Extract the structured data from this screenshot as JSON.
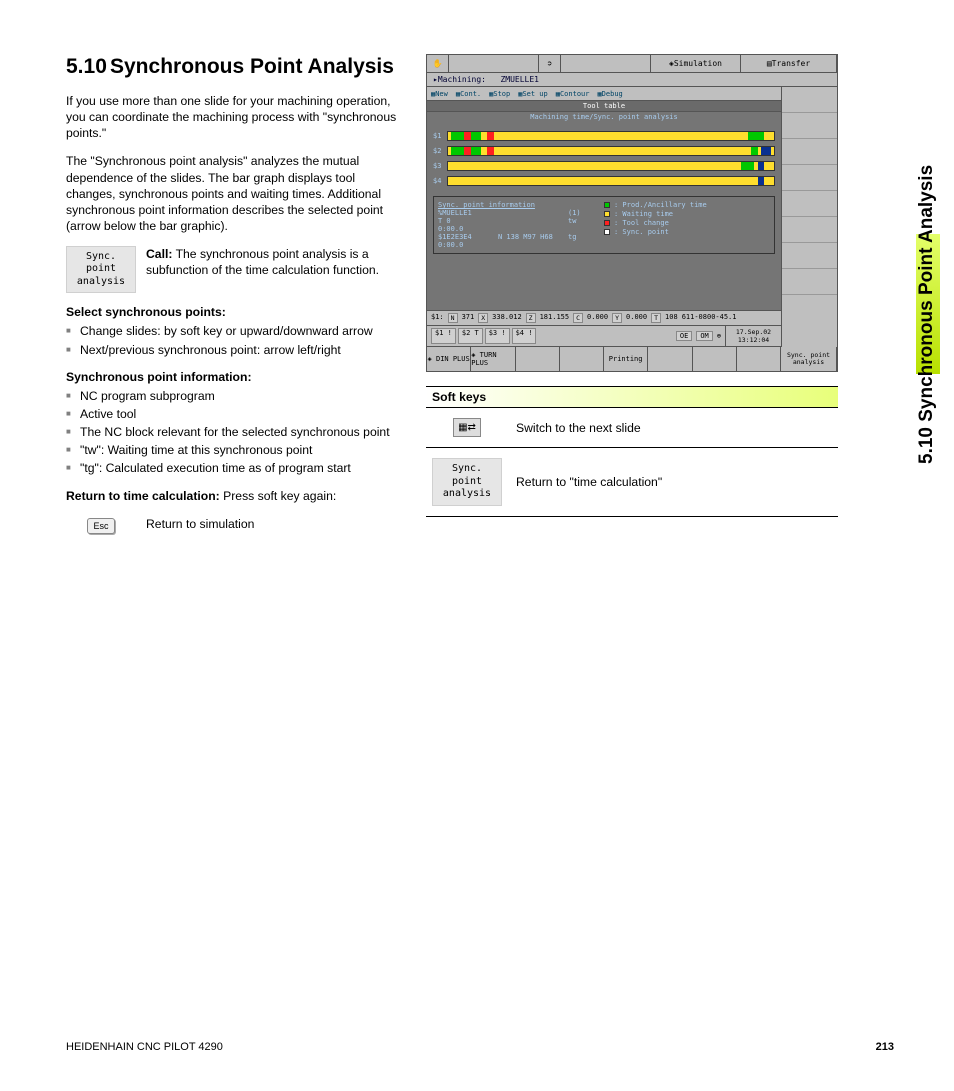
{
  "heading_number": "5.10",
  "heading_title": "Synchronous Point Analysis",
  "para1": "If you use more than one slide for your machining operation, you can coordinate the machining process with \"synchronous points.\"",
  "para2": "The \"Synchronous point analysis\" analyzes the mutual dependence of the slides. The bar graph displays tool changes, synchronous points and waiting times. Additional synchronous point information describes the selected point (arrow below the bar graphic).",
  "softkey_sync_line1": "Sync. point",
  "softkey_sync_line2": "analysis",
  "call_label": "Call:",
  "call_text": " The synchronous point analysis is a subfunction of the time calculation function.",
  "select_heading": "Select synchronous points:",
  "select_items": [
    "Change slides: by soft key or upward/downward arrow",
    "Next/previous synchronous point: arrow left/right"
  ],
  "info_heading": "Synchronous point information:",
  "info_items": [
    "NC program subprogram",
    "Active tool",
    "The NC block relevant for the selected synchronous point",
    "\"tw\": Waiting time at this synchronous point",
    "\"tg\": Calculated execution time as of program start"
  ],
  "return_heading": "Return to time calculation:",
  "return_text": " Press soft key again:",
  "esc_label": "Esc",
  "esc_text": "Return to simulation",
  "screenshot": {
    "top_bar": {
      "simulation": "Simulation",
      "transfer": "Transfer"
    },
    "machining_label": "Machining:",
    "machining_value": "ZMUELLE1",
    "tabs": [
      "New",
      "Cont.",
      "Stop",
      "Set up",
      "Contour",
      "Debug"
    ],
    "tool_table": "Tool table",
    "mach_time": "Machining time/Sync. point analysis",
    "bars": [
      {
        "label": "$1",
        "segments": [
          {
            "l": 1,
            "w": 4,
            "c": "#00c800"
          },
          {
            "l": 5,
            "w": 2,
            "c": "#ff2020"
          },
          {
            "l": 7,
            "w": 3,
            "c": "#00c800"
          },
          {
            "l": 12,
            "w": 2,
            "c": "#ff2020"
          },
          {
            "l": 92,
            "w": 5,
            "c": "#00c800"
          }
        ]
      },
      {
        "label": "$2",
        "segments": [
          {
            "l": 1,
            "w": 4,
            "c": "#00c800"
          },
          {
            "l": 5,
            "w": 2,
            "c": "#ff2020"
          },
          {
            "l": 7,
            "w": 3,
            "c": "#00c800"
          },
          {
            "l": 12,
            "w": 2,
            "c": "#ff2020"
          },
          {
            "l": 93,
            "w": 2,
            "c": "#00c800"
          },
          {
            "l": 96,
            "w": 3,
            "c": "#0a3090"
          }
        ]
      },
      {
        "label": "$3",
        "segments": [
          {
            "l": 90,
            "w": 4,
            "c": "#00c800"
          },
          {
            "l": 95,
            "w": 2,
            "c": "#0a3090"
          }
        ]
      },
      {
        "label": "$4",
        "segments": [
          {
            "l": 95,
            "w": 2,
            "c": "#0a3090"
          }
        ]
      }
    ],
    "info": {
      "title": "Sync. point information",
      "rows": [
        [
          "%MUELLE1",
          "",
          "(1)"
        ],
        [
          "T  0",
          "",
          "tw   0:00.0"
        ],
        [
          "$1E2E3E4",
          "N 138  M97 H68",
          "tg   0:00.0"
        ]
      ],
      "legend": [
        {
          "c": "#00c800",
          "t": ": Prod./Ancillary time"
        },
        {
          "c": "#ffde2e",
          "t": ": Waiting time"
        },
        {
          "c": "#ff2020",
          "t": ": Tool change"
        },
        {
          "c": "#ffffff",
          "t": ": Sync. point"
        }
      ]
    },
    "status_row": {
      "items": [
        "$1:",
        "N",
        "371",
        "X",
        "338.012",
        "Z",
        "181.155",
        "C",
        "0.000",
        "Y",
        "0.000",
        "T",
        "108",
        "611-0800-45.1"
      ]
    },
    "slide_btns": [
      "$1 !",
      "$2 T",
      "$3 !",
      "$4 !"
    ],
    "toggles": [
      "OE",
      "OM"
    ],
    "datetime": [
      "17.Sep.02",
      "13:12:04"
    ],
    "bottom": [
      "DIN PLUS",
      "TURN PLUS",
      "",
      "",
      "Printing",
      "",
      "",
      ""
    ],
    "bottom_last": "Sync. point analysis"
  },
  "softkeys_header": "Soft keys",
  "softkeys_rows": [
    {
      "type": "switch",
      "text": "Switch to the next slide"
    },
    {
      "type": "sync",
      "text": "Return to \"time calculation\""
    }
  ],
  "side_tab": "5.10 Synchronous Point Analysis",
  "footer_left": "HEIDENHAIN CNC PILOT 4290",
  "footer_page": "213"
}
